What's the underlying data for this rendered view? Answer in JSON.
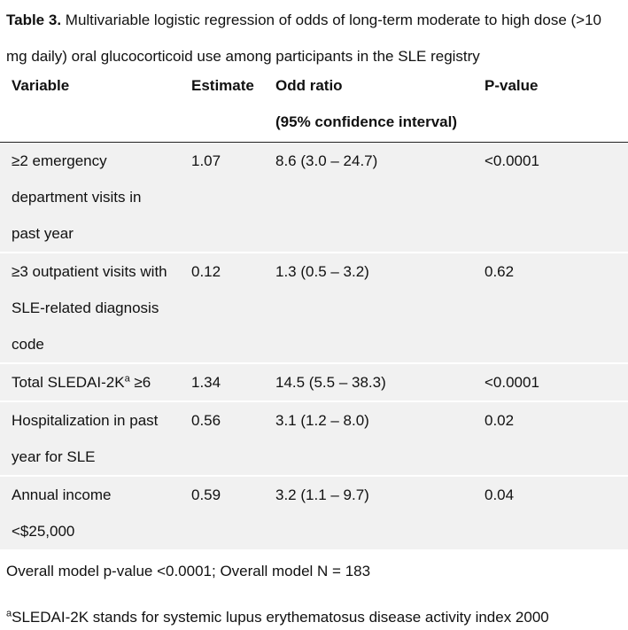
{
  "caption": {
    "label": "Table 3.",
    "text": "Multivariable logistic regression of odds of long-term moderate to high dose (>10 mg daily) oral glucocorticoid use among participants in the SLE registry"
  },
  "headers": {
    "variable": "Variable",
    "estimate": "Estimate",
    "odd_ratio": "Odd ratio",
    "odd_ratio_sub": "(95% confidence interval)",
    "p_value": "P-value"
  },
  "rows": [
    {
      "variable_lines": [
        "≥2 emergency",
        "department visits in",
        "past year"
      ],
      "estimate": "1.07",
      "odd_ratio": "8.6 (3.0 – 24.7)",
      "p_value": "<0.0001"
    },
    {
      "variable_lines": [
        "≥3 outpatient visits with",
        "SLE-related diagnosis",
        "code"
      ],
      "estimate": "0.12",
      "odd_ratio": "1.3 (0.5 – 3.2)",
      "p_value": "0.62"
    },
    {
      "variable_lines": [
        "Total SLEDAI-2K"
      ],
      "variable_sup": "a",
      "variable_suffix": " ≥6",
      "estimate": "1.34",
      "odd_ratio": "14.5 (5.5 – 38.3)",
      "p_value": "<0.0001"
    },
    {
      "variable_lines": [
        "Hospitalization in past",
        "year for SLE"
      ],
      "estimate": "0.56",
      "odd_ratio": "3.1 (1.2 – 8.0)",
      "p_value": "0.02"
    },
    {
      "variable_lines": [
        "Annual income",
        "<$25,000"
      ],
      "estimate": "0.59",
      "odd_ratio": "3.2 (1.1 – 9.7)",
      "p_value": "0.04"
    }
  ],
  "footnotes": {
    "model": "Overall model p-value <0.0001; Overall model N = 183",
    "def_sup": "a",
    "definition": "SLEDAI-2K stands for systemic lupus erythematosus disease activity index 2000"
  }
}
